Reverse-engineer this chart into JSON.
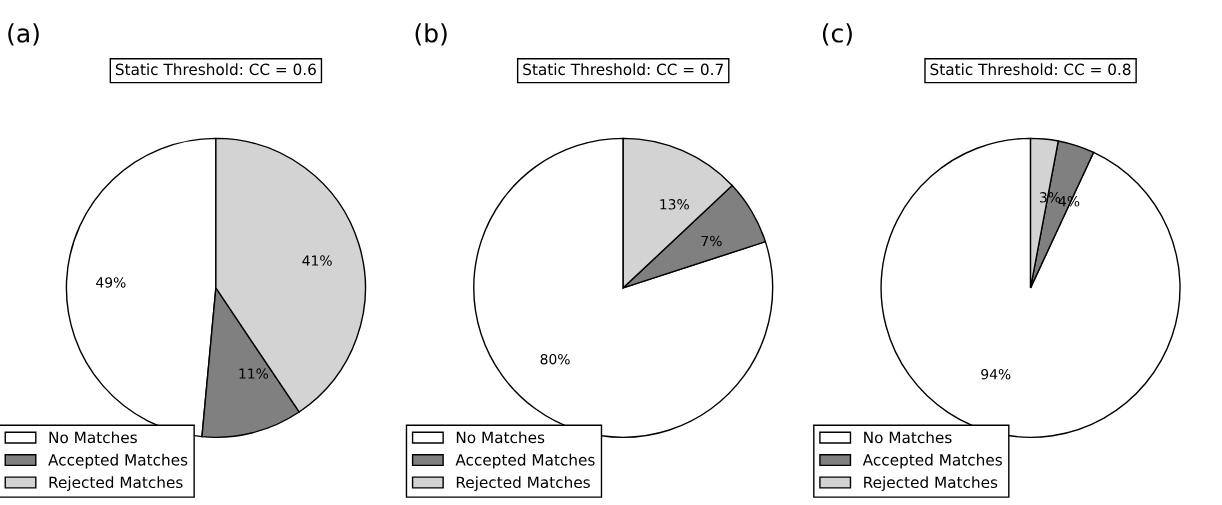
{
  "chart_data": [
    {
      "type": "pie",
      "title": "(a)",
      "subtitle": "Static Threshold: CC = 0.6",
      "categories": [
        "No Matches",
        "Accepted Matches",
        "Rejected Matches"
      ],
      "values": [
        49,
        11,
        41
      ],
      "value_labels": [
        "49%",
        "11%",
        "41%"
      ],
      "colors": [
        "#ffffff",
        "#808080",
        "#d3d3d3"
      ],
      "legend": "bottom left"
    },
    {
      "type": "pie",
      "title": "(b)",
      "subtitle": "Static Threshold: CC = 0.7",
      "categories": [
        "No Matches",
        "Accepted Matches",
        "Rejected Matches"
      ],
      "values": [
        80,
        7,
        13
      ],
      "value_labels": [
        "80%",
        "7%",
        "13%"
      ],
      "colors": [
        "#ffffff",
        "#808080",
        "#d3d3d3"
      ],
      "legend": "bottom left"
    },
    {
      "type": "pie",
      "title": "(c)",
      "subtitle": "Static Threshold: CC = 0.8",
      "categories": [
        "No Matches",
        "Accepted Matches",
        "Rejected Matches"
      ],
      "values": [
        94,
        4,
        3
      ],
      "value_labels": [
        "94%",
        "4%",
        "3%"
      ],
      "colors": [
        "#ffffff",
        "#808080",
        "#d3d3d3"
      ],
      "legend": "bottom left"
    }
  ]
}
